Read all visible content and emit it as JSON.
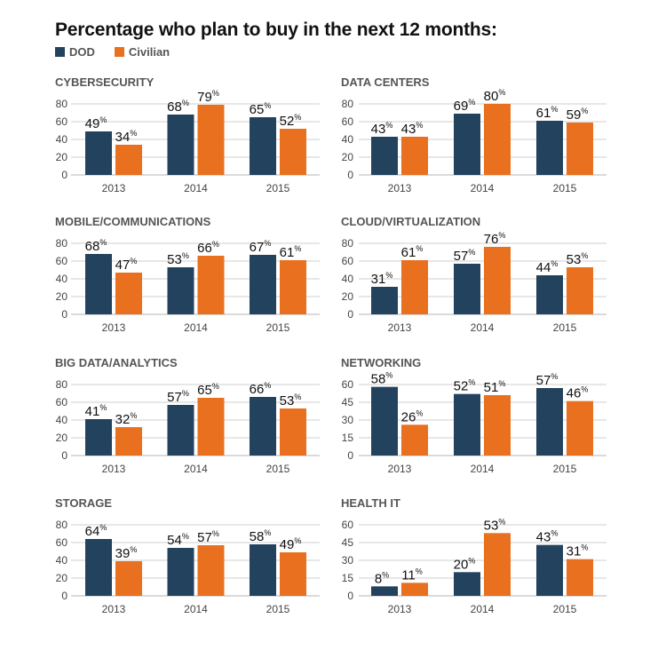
{
  "title": "Percentage who plan to buy in the next 12 months:",
  "legend": [
    {
      "label": "DOD",
      "color": "#23425e"
    },
    {
      "label": "Civilian",
      "color": "#e8701e"
    }
  ],
  "chart_data": [
    {
      "type": "bar",
      "title": "CYBERSECURITY",
      "categories": [
        "2013",
        "2014",
        "2015"
      ],
      "yticks": [
        0,
        20,
        40,
        60,
        80
      ],
      "ylim": [
        0,
        80
      ],
      "series": [
        {
          "name": "DOD",
          "values": [
            49,
            68,
            65
          ]
        },
        {
          "name": "Civilian",
          "values": [
            34,
            79,
            52
          ]
        }
      ]
    },
    {
      "type": "bar",
      "title": "DATA CENTERS",
      "categories": [
        "2013",
        "2014",
        "2015"
      ],
      "yticks": [
        0,
        20,
        40,
        60,
        80
      ],
      "ylim": [
        0,
        80
      ],
      "series": [
        {
          "name": "DOD",
          "values": [
            43,
            69,
            61
          ]
        },
        {
          "name": "Civilian",
          "values": [
            43,
            80,
            59
          ]
        }
      ]
    },
    {
      "type": "bar",
      "title": "MOBILE/COMMUNICATIONS",
      "categories": [
        "2013",
        "2014",
        "2015"
      ],
      "yticks": [
        0,
        20,
        40,
        60,
        80
      ],
      "ylim": [
        0,
        80
      ],
      "series": [
        {
          "name": "DOD",
          "values": [
            68,
            53,
            67
          ]
        },
        {
          "name": "Civilian",
          "values": [
            47,
            66,
            61
          ]
        }
      ]
    },
    {
      "type": "bar",
      "title": "CLOUD/VIRTUALIZATION",
      "categories": [
        "2013",
        "2014",
        "2015"
      ],
      "yticks": [
        0,
        20,
        40,
        60,
        80
      ],
      "ylim": [
        0,
        80
      ],
      "series": [
        {
          "name": "DOD",
          "values": [
            31,
            57,
            44
          ]
        },
        {
          "name": "Civilian",
          "values": [
            61,
            76,
            53
          ]
        }
      ]
    },
    {
      "type": "bar",
      "title": "BIG DATA/ANALYTICS",
      "categories": [
        "2013",
        "2014",
        "2015"
      ],
      "yticks": [
        0,
        20,
        40,
        60,
        80
      ],
      "ylim": [
        0,
        80
      ],
      "series": [
        {
          "name": "DOD",
          "values": [
            41,
            57,
            66
          ]
        },
        {
          "name": "Civilian",
          "values": [
            32,
            65,
            53
          ]
        }
      ]
    },
    {
      "type": "bar",
      "title": "NETWORKING",
      "categories": [
        "2013",
        "2014",
        "2015"
      ],
      "yticks": [
        0,
        15,
        30,
        45,
        60
      ],
      "ylim": [
        0,
        60
      ],
      "series": [
        {
          "name": "DOD",
          "values": [
            58,
            52,
            57
          ]
        },
        {
          "name": "Civilian",
          "values": [
            26,
            51,
            46
          ]
        }
      ]
    },
    {
      "type": "bar",
      "title": "STORAGE",
      "categories": [
        "2013",
        "2014",
        "2015"
      ],
      "yticks": [
        0,
        20,
        40,
        60,
        80
      ],
      "ylim": [
        0,
        80
      ],
      "series": [
        {
          "name": "DOD",
          "values": [
            64,
            54,
            58
          ]
        },
        {
          "name": "Civilian",
          "values": [
            39,
            57,
            49
          ]
        }
      ]
    },
    {
      "type": "bar",
      "title": "HEALTH IT",
      "categories": [
        "2013",
        "2014",
        "2015"
      ],
      "yticks": [
        0,
        15,
        30,
        45,
        60
      ],
      "ylim": [
        0,
        60
      ],
      "series": [
        {
          "name": "DOD",
          "values": [
            8,
            20,
            43
          ]
        },
        {
          "name": "Civilian",
          "values": [
            11,
            53,
            31
          ]
        }
      ]
    }
  ]
}
